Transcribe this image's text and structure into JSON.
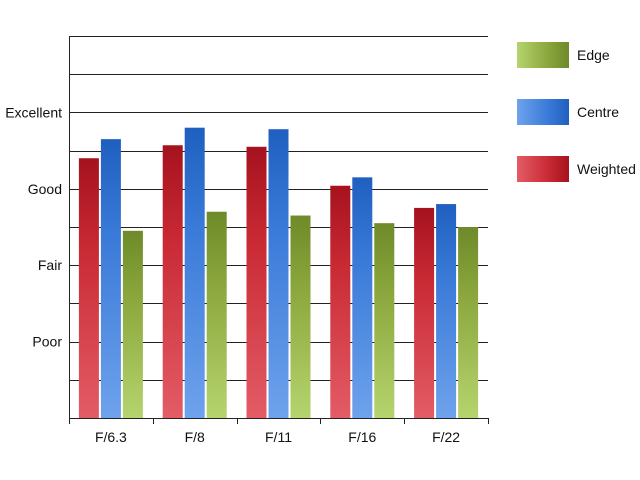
{
  "chart_data": {
    "type": "bar",
    "categories": [
      "F/6.3",
      "F/8",
      "F/11",
      "F/16",
      "F/22"
    ],
    "series": [
      {
        "name": "Weighted",
        "values": [
          3.4,
          3.57,
          3.55,
          3.04,
          2.75
        ]
      },
      {
        "name": "Centre",
        "values": [
          3.65,
          3.8,
          3.78,
          3.15,
          2.8
        ]
      },
      {
        "name": "Edge",
        "values": [
          2.45,
          2.7,
          2.65,
          2.55,
          2.5
        ]
      }
    ],
    "yticks": [
      {
        "value": 1,
        "label": "Poor"
      },
      {
        "value": 2,
        "label": "Fair"
      },
      {
        "value": 3,
        "label": "Good"
      },
      {
        "value": 4,
        "label": "Excellent"
      }
    ],
    "ylim": [
      0,
      5
    ],
    "grid": true,
    "legend_position": "right"
  },
  "legend": [
    {
      "label": "Edge"
    },
    {
      "label": "Centre"
    },
    {
      "label": "Weighted"
    }
  ],
  "colors": {
    "Weighted": {
      "dark": "#a5121e",
      "mid": "#c92a34",
      "light": "#e35c66"
    },
    "Centre": {
      "dark": "#1f5fbf",
      "mid": "#3a7ad8",
      "light": "#6ea2ec"
    },
    "Edge": {
      "dark": "#6e8a2a",
      "mid": "#8aa63c",
      "light": "#b6d46e"
    }
  }
}
